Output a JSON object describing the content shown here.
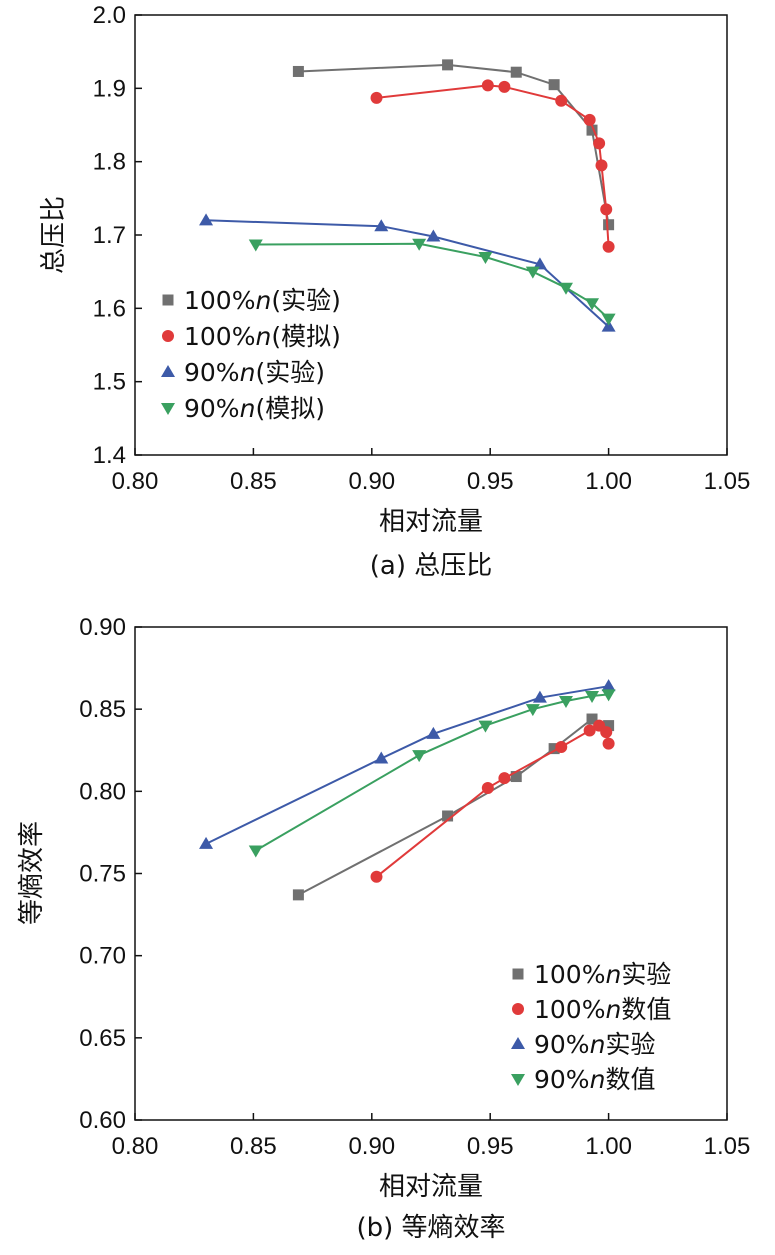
{
  "chart_data": [
    {
      "type": "line",
      "caption": "(a) 总压比",
      "xlabel": "相对流量",
      "ylabel": "总压比",
      "xlim": [
        0.8,
        1.05
      ],
      "ylim": [
        1.4,
        2.0
      ],
      "xticks": [
        "0.80",
        "0.85",
        "0.90",
        "0.95",
        "1.00",
        "1.05"
      ],
      "yticks": [
        "1.4",
        "1.5",
        "1.6",
        "1.7",
        "1.8",
        "1.9",
        "2.0"
      ],
      "legend_position": "lower-left",
      "series": [
        {
          "legend_pre": "100%",
          "legend_n": "n",
          "legend_post": "(实验)",
          "color": "#707070",
          "marker": "square",
          "x": [
            0.869,
            0.932,
            0.961,
            0.977,
            0.993,
            1.0
          ],
          "y": [
            1.923,
            1.932,
            1.922,
            1.905,
            1.843,
            1.714
          ]
        },
        {
          "legend_pre": "100%",
          "legend_n": "n",
          "legend_post": "(模拟)",
          "color": "#e03a3a",
          "marker": "circle",
          "x": [
            0.902,
            0.949,
            0.956,
            0.98,
            0.992,
            0.996,
            0.997,
            0.999,
            1.0
          ],
          "y": [
            1.887,
            1.904,
            1.902,
            1.883,
            1.857,
            1.825,
            1.795,
            1.735,
            1.684
          ]
        },
        {
          "legend_pre": "90%",
          "legend_n": "n",
          "legend_post": "(实验)",
          "color": "#3d5aa8",
          "marker": "triangle-up",
          "x": [
            0.83,
            0.904,
            0.926,
            0.971,
            1.0
          ],
          "y": [
            1.72,
            1.712,
            1.698,
            1.66,
            1.575
          ]
        },
        {
          "legend_pre": "90%",
          "legend_n": "n",
          "legend_post": "(模拟)",
          "color": "#3aa060",
          "marker": "triangle-down",
          "x": [
            0.851,
            0.92,
            0.948,
            0.968,
            0.982,
            0.993,
            1.0
          ],
          "y": [
            1.687,
            1.688,
            1.67,
            1.65,
            1.628,
            1.607,
            1.586
          ]
        }
      ]
    },
    {
      "type": "line",
      "caption": "(b) 等熵效率",
      "xlabel": "相对流量",
      "ylabel": "等熵效率",
      "xlim": [
        0.8,
        1.05
      ],
      "ylim": [
        0.6,
        0.9
      ],
      "xticks": [
        "0.80",
        "0.85",
        "0.90",
        "0.95",
        "1.00",
        "1.05"
      ],
      "yticks": [
        "0.60",
        "0.65",
        "0.70",
        "0.75",
        "0.80",
        "0.85",
        "0.90"
      ],
      "legend_position": "lower-right",
      "series": [
        {
          "legend_pre": "100%",
          "legend_n": "n",
          "legend_post": "实验",
          "color": "#707070",
          "marker": "square",
          "x": [
            0.869,
            0.932,
            0.961,
            0.977,
            0.993,
            1.0
          ],
          "y": [
            0.737,
            0.785,
            0.809,
            0.826,
            0.844,
            0.84
          ]
        },
        {
          "legend_pre": "100%",
          "legend_n": "n",
          "legend_post": "数值",
          "color": "#e03a3a",
          "marker": "circle",
          "x": [
            0.902,
            0.949,
            0.956,
            0.98,
            0.992,
            0.996,
            0.999,
            1.0
          ],
          "y": [
            0.748,
            0.802,
            0.808,
            0.827,
            0.837,
            0.84,
            0.836,
            0.829
          ]
        },
        {
          "legend_pre": "90%",
          "legend_n": "n",
          "legend_post": "实验",
          "color": "#3d5aa8",
          "marker": "triangle-up",
          "x": [
            0.83,
            0.904,
            0.926,
            0.971,
            1.0
          ],
          "y": [
            0.768,
            0.82,
            0.835,
            0.857,
            0.864
          ]
        },
        {
          "legend_pre": "90%",
          "legend_n": "n",
          "legend_post": "数值",
          "color": "#3aa060",
          "marker": "triangle-down",
          "x": [
            0.851,
            0.92,
            0.948,
            0.968,
            0.982,
            0.993,
            1.0
          ],
          "y": [
            0.764,
            0.822,
            0.84,
            0.85,
            0.855,
            0.858,
            0.859
          ]
        }
      ]
    }
  ]
}
